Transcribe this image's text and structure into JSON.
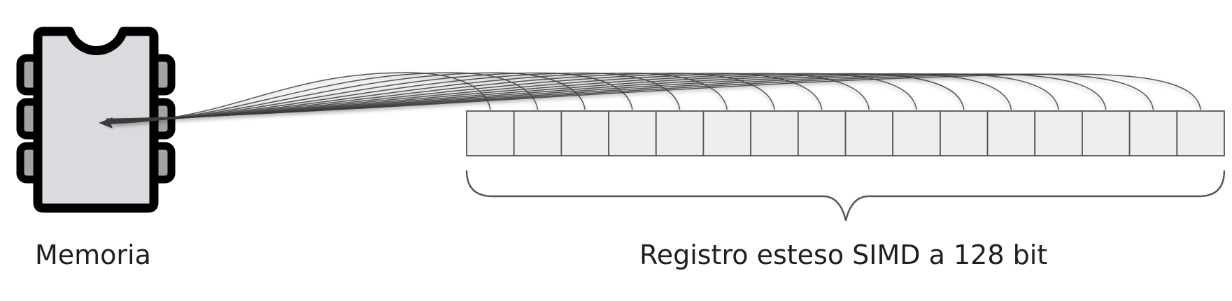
{
  "memory_label": "Memoria",
  "register_label": "Registro esteso SIMD a 128 bit",
  "register": {
    "lane_count": 16
  },
  "colors": {
    "chip_body": "#d9dbde",
    "chip_outline": "#000000",
    "chip_pin": "#a1a3a6",
    "register_cell": "#eeeeee",
    "register_border": "#555555",
    "wire": "#3b3b3b",
    "brace": "#555555",
    "text": "#1f1f1f"
  }
}
